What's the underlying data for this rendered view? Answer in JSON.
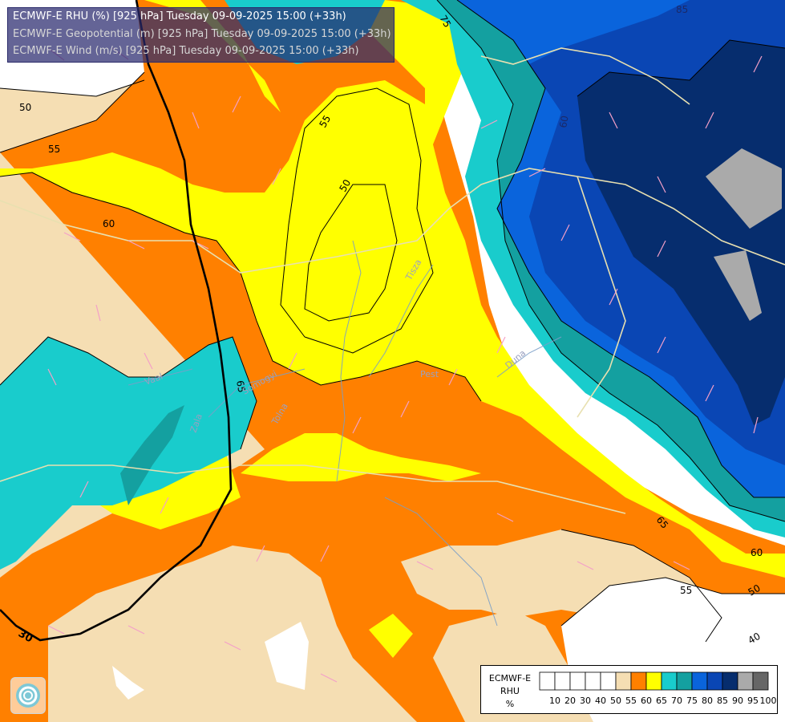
{
  "titles": {
    "line1": "ECMWF-E RHU (%) [925 hPa] Tuesday 09-09-2025 15:00 (+33h)",
    "line2": "ECMWF-E Geopotential (m) [925 hPa] Tuesday 09-09-2025 15:00 (+33h)",
    "line3": "ECMWF-E Wind (m/s) [925 hPa] Tuesday 09-09-2025 15:00 (+33h)"
  },
  "legend": {
    "source": "ECMWF-E",
    "variable": "RHU",
    "unit": "%",
    "levels": [
      "10",
      "20",
      "30",
      "40",
      "50",
      "55",
      "60",
      "65",
      "70",
      "75",
      "80",
      "85",
      "90",
      "95",
      "100"
    ],
    "colors": [
      "#ffffff",
      "#ffffff",
      "#ffffff",
      "#ffffff",
      "#ffffff",
      "#f5deb3",
      "#ff8000",
      "#ffff00",
      "#19cccc",
      "#14a0a0",
      "#0a64dc",
      "#0a46b4",
      "#062d6e",
      "#aaaaaa",
      "#666666"
    ]
  },
  "contour_labels": [
    "75",
    "85",
    "60",
    "55",
    "50",
    "65",
    "50",
    "55",
    "60",
    "65",
    "55",
    "50",
    "40",
    "60",
    "55",
    "50",
    "55"
  ],
  "place_labels": [
    "Tisza",
    "Vaal",
    "Pest",
    "Duna",
    "Zala",
    "Somogyi",
    "Tolna"
  ],
  "boundary_label": "30"
}
